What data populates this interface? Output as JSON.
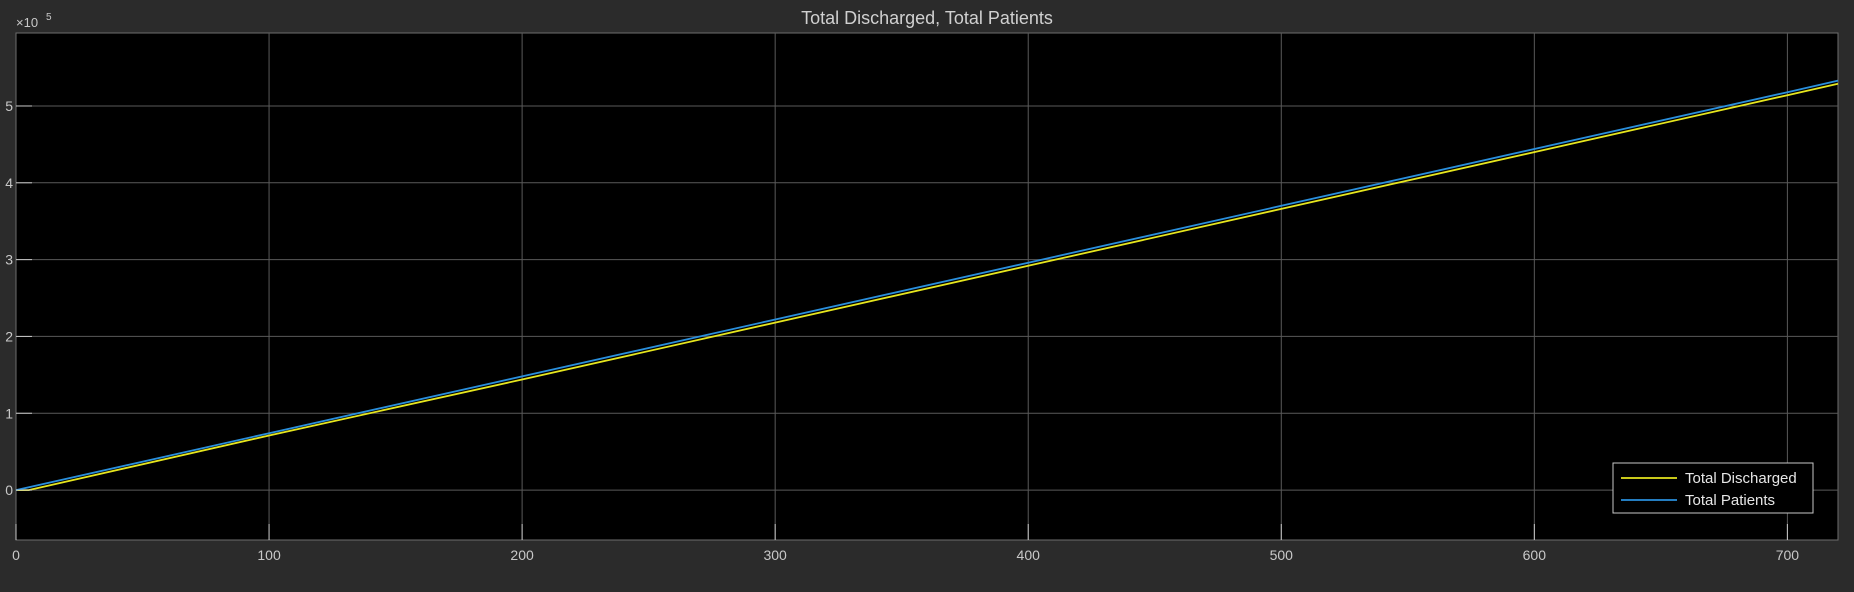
{
  "chart_data": {
    "type": "line",
    "title": "Total Discharged, Total Patients",
    "xlabel": "",
    "ylabel": "",
    "xlim": [
      0,
      720
    ],
    "ylim": [
      -0.65,
      5.95
    ],
    "y_exponent_label": "×10",
    "y_exponent_power": "5",
    "x_ticks": [
      0,
      100,
      200,
      300,
      400,
      500,
      600,
      700
    ],
    "x_tick_labels": [
      "0",
      "100",
      "200",
      "300",
      "400",
      "500",
      "600",
      "700"
    ],
    "y_ticks": [
      0,
      1,
      2,
      3,
      4,
      5
    ],
    "y_tick_labels": [
      "0",
      "1",
      "2",
      "3",
      "4",
      "5"
    ],
    "grid": true,
    "legend_position": "bottom-right",
    "series": [
      {
        "name": "Total Discharged",
        "color": "#e6e61e",
        "x": [
          0,
          5,
          100,
          200,
          300,
          400,
          500,
          600,
          700,
          720
        ],
        "y": [
          0,
          0,
          0.71,
          1.44,
          2.18,
          2.92,
          3.66,
          4.4,
          5.14,
          5.29
        ]
      },
      {
        "name": "Total Patients",
        "color": "#2a8fdc",
        "x": [
          0,
          100,
          200,
          300,
          400,
          500,
          600,
          700,
          720
        ],
        "y": [
          0,
          0.74,
          1.48,
          2.22,
          2.96,
          3.7,
          4.44,
          5.18,
          5.33
        ]
      }
    ]
  },
  "colors": {
    "figure_background": "#2b2b2b",
    "axes_background": "#000000",
    "grid": "#5a5a5a",
    "axis_text": "#c8c8c8",
    "title_text": "#d0d0d0",
    "legend_border": "#c8c8c8"
  }
}
